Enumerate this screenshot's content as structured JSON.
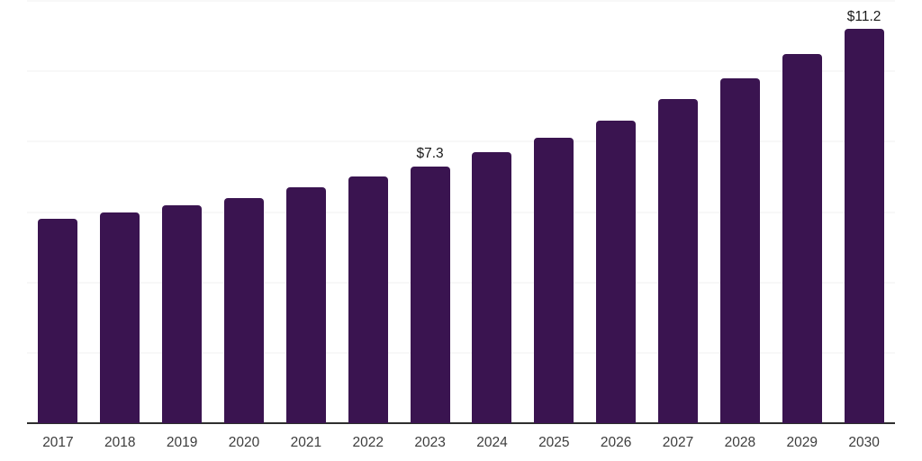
{
  "chart_data": {
    "type": "bar",
    "title": "",
    "xlabel": "",
    "ylabel": "",
    "categories": [
      "2017",
      "2018",
      "2019",
      "2020",
      "2021",
      "2022",
      "2023",
      "2024",
      "2025",
      "2026",
      "2027",
      "2028",
      "2029",
      "2030"
    ],
    "values": [
      5.8,
      6.0,
      6.2,
      6.4,
      6.7,
      7.0,
      7.3,
      7.7,
      8.1,
      8.6,
      9.2,
      9.8,
      10.5,
      11.2
    ],
    "data_labels": {
      "2023": "$7.3",
      "2030": "$11.2"
    },
    "ylim": [
      0,
      12
    ],
    "gridline_step": 2,
    "grid": true,
    "legend_position": "none",
    "colors": {
      "bar_fill": "#3a1450",
      "gridline": "#f0f0f0",
      "axis_line": "#2e2e2e",
      "tick_label": "#3d3d3d",
      "data_label": "#1a1a1a",
      "background": "#ffffff"
    }
  }
}
